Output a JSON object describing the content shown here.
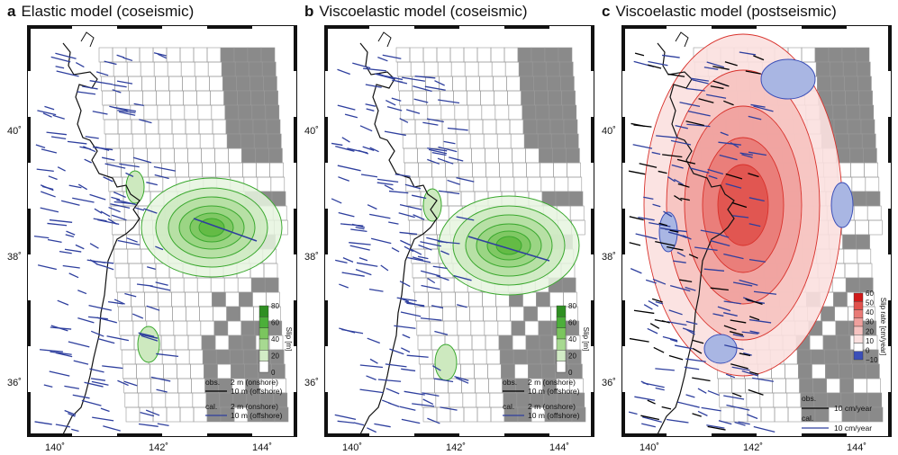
{
  "panels": [
    {
      "letter": "a",
      "title": "Elastic model (coseismic)"
    },
    {
      "letter": "b",
      "title": "Viscoelastic model (coseismic)"
    },
    {
      "letter": "c",
      "title": "Viscoelastic model (postseismic)"
    }
  ],
  "lon_ticks": [
    "140˚",
    "142˚",
    "144˚"
  ],
  "lat_ticks": [
    "40˚",
    "38˚",
    "36˚"
  ],
  "slip_colorbar": {
    "label": "Slip [m]",
    "ticks": [
      "80",
      "60",
      "40",
      "20",
      "0"
    ]
  },
  "rate_colorbar": {
    "label": "Slip rate [cm/year]",
    "ticks": [
      "60",
      "50",
      "40",
      "30",
      "20",
      "10",
      "0",
      "−10"
    ]
  },
  "legend_coseismic": {
    "obs": "obs.",
    "obs_1": "2 m (onshore)",
    "obs_2": "10 m (offshore)",
    "cal": "cal.",
    "cal_1": "2 m (onshore)",
    "cal_2": "10 m (offshore)"
  },
  "legend_postseismic": {
    "obs": "obs.",
    "obs_1": "10 cm/year",
    "cal": "cal.",
    "cal_1": "10 cm/year"
  },
  "colors": {
    "observed": "#000000",
    "calculated": "#2e3f9e",
    "slip_green": "#4caf3a",
    "rate_red": "#e8302a",
    "rate_blue": "#3b4fb8",
    "fault_gray": "#8a8a8a"
  }
}
